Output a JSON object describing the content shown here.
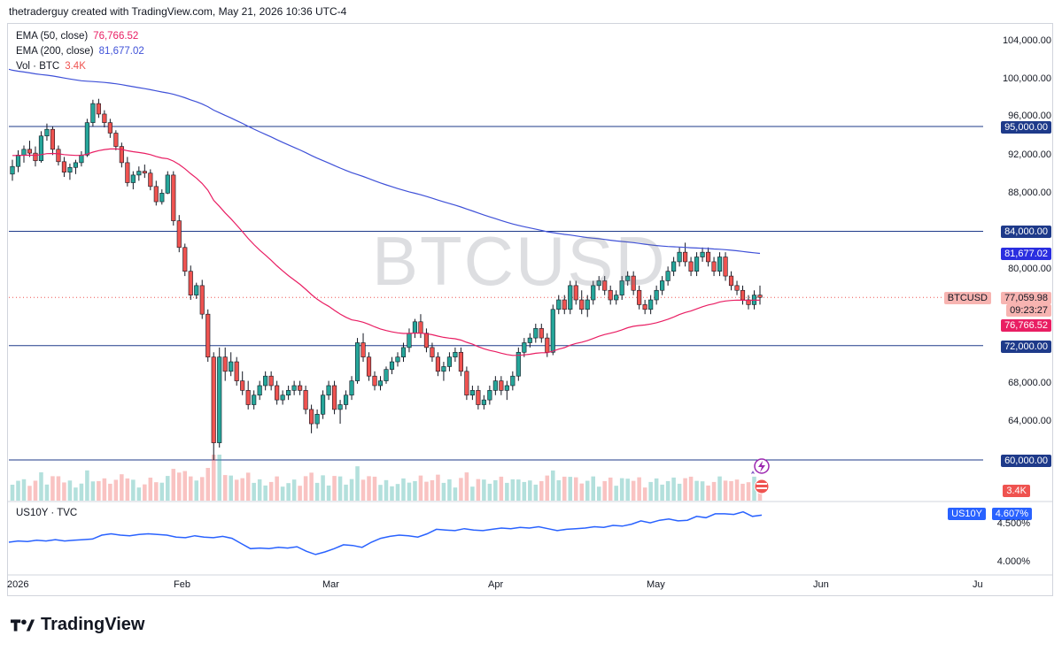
{
  "header": {
    "text": "thetraderguy created with TradingView.com, May 21, 2026 10:36 UTC-4"
  },
  "watermark": "BTCUSD",
  "legend": {
    "ema50": {
      "label": "EMA (50, close)",
      "value": "76,766.52",
      "color": "#e91e63"
    },
    "ema200": {
      "label": "EMA (200, close)",
      "value": "81,677.02",
      "color": "#3f51d8"
    },
    "vol": {
      "label": "Vol · BTC",
      "value": "3.4K",
      "color": "#ef5350"
    }
  },
  "price_labels": [
    "104,000.00",
    "100,000.00",
    "96,000.00",
    "92,000.00",
    "88,000.00",
    "80,000.00",
    "68,000.00",
    "64,000.00"
  ],
  "level_tags": [
    {
      "label": "95,000.00",
      "price": 95000
    },
    {
      "label": "84,000.00",
      "price": 84000
    },
    {
      "label": "72,000.00",
      "price": 72000
    },
    {
      "label": "60,000.00",
      "price": 60000
    }
  ],
  "ema200_tag": "81,677.02",
  "ema50_tag": "76,766.52",
  "current": {
    "symbol": "BTCUSD",
    "price": "77,059.98",
    "countdown": "09:23:27"
  },
  "vol_tag": "3.4K",
  "sub": {
    "legend": "US10Y · TVC",
    "tag_symbol": "US10Y",
    "tag_value": "4.607%",
    "labels": [
      "4.500%",
      "4.000%"
    ]
  },
  "x_labels": [
    "2026",
    "Feb",
    "Mar",
    "Apr",
    "May",
    "Jun",
    "Ju"
  ],
  "footer": {
    "brand": "TradingView"
  },
  "colors": {
    "up": "#26a69a",
    "down": "#ef5350",
    "level": "#1e3a8a",
    "ema50": "#e91e63",
    "ema200": "#3f51d8",
    "us10y": "#2962ff"
  },
  "chart_data": {
    "type": "line",
    "title": "",
    "xlabel": "",
    "ylabel": "",
    "price_axis": {
      "ylim": [
        58000,
        106000
      ]
    },
    "horizontal_levels": [
      95000,
      84000,
      72000,
      60000
    ],
    "candles": [
      [
        90000,
        91500,
        89300,
        90800
      ],
      [
        90800,
        92500,
        90200,
        92000
      ],
      [
        92000,
        93000,
        91200,
        92600
      ],
      [
        92600,
        93500,
        91800,
        92200
      ],
      [
        92200,
        92900,
        90800,
        91400
      ],
      [
        91400,
        94500,
        91200,
        94000
      ],
      [
        94000,
        95300,
        93500,
        94700
      ],
      [
        94700,
        95000,
        92000,
        92600
      ],
      [
        92600,
        93000,
        90900,
        91300
      ],
      [
        91300,
        91800,
        89700,
        90200
      ],
      [
        90200,
        91100,
        89400,
        90700
      ],
      [
        90700,
        91500,
        90000,
        91200
      ],
      [
        91200,
        92400,
        90800,
        92000
      ],
      [
        92000,
        95800,
        91800,
        95400
      ],
      [
        95400,
        97800,
        95000,
        97400
      ],
      [
        97400,
        97900,
        95900,
        96300
      ],
      [
        96300,
        96700,
        94900,
        95400
      ],
      [
        95400,
        95800,
        93800,
        94300
      ],
      [
        94300,
        94600,
        92500,
        92900
      ],
      [
        92900,
        93300,
        90700,
        91200
      ],
      [
        91200,
        91800,
        88700,
        89100
      ],
      [
        89100,
        90300,
        88400,
        89900
      ],
      [
        89900,
        90800,
        89300,
        90300
      ],
      [
        90300,
        91000,
        89600,
        90100
      ],
      [
        90100,
        90500,
        88300,
        88700
      ],
      [
        88700,
        89300,
        86700,
        87100
      ],
      [
        87100,
        88400,
        86800,
        88000
      ],
      [
        88000,
        90300,
        87900,
        89900
      ],
      [
        89900,
        90300,
        84600,
        85100
      ],
      [
        85100,
        85700,
        81800,
        82300
      ],
      [
        82300,
        82700,
        79300,
        79800
      ],
      [
        79800,
        80400,
        76800,
        77300
      ],
      [
        77300,
        78600,
        76900,
        78300
      ],
      [
        78300,
        78900,
        74800,
        75300
      ],
      [
        75300,
        75800,
        70300,
        70800
      ],
      [
        70800,
        71300,
        60000,
        61800
      ],
      [
        61800,
        71800,
        61300,
        70800
      ],
      [
        70800,
        71800,
        68300,
        69300
      ],
      [
        69300,
        71300,
        68800,
        70300
      ],
      [
        70300,
        70800,
        67800,
        68300
      ],
      [
        68300,
        69300,
        66800,
        67300
      ],
      [
        67300,
        68300,
        65300,
        65800
      ],
      [
        65800,
        67300,
        65300,
        66800
      ],
      [
        66800,
        68300,
        66300,
        67800
      ],
      [
        67800,
        69300,
        67300,
        68800
      ],
      [
        68800,
        69300,
        67300,
        67800
      ],
      [
        67800,
        68300,
        65800,
        66300
      ],
      [
        66300,
        67300,
        65800,
        66800
      ],
      [
        66800,
        67800,
        66300,
        67300
      ],
      [
        67300,
        68300,
        66800,
        67800
      ],
      [
        67800,
        68300,
        66800,
        67300
      ],
      [
        67300,
        67800,
        64800,
        65300
      ],
      [
        65300,
        65800,
        62800,
        63800
      ],
      [
        63800,
        65300,
        63300,
        64800
      ],
      [
        64800,
        67300,
        64300,
        66800
      ],
      [
        66800,
        68300,
        66300,
        67800
      ],
      [
        67800,
        68300,
        64800,
        65300
      ],
      [
        65300,
        66300,
        63800,
        65800
      ],
      [
        65800,
        67300,
        65300,
        66800
      ],
      [
        66800,
        68800,
        66300,
        68300
      ],
      [
        68300,
        72800,
        68000,
        72300
      ],
      [
        72300,
        73300,
        70300,
        70800
      ],
      [
        70800,
        71300,
        68300,
        68800
      ],
      [
        68800,
        69300,
        67300,
        67800
      ],
      [
        67800,
        68800,
        67300,
        68300
      ],
      [
        68300,
        69800,
        68000,
        69500
      ],
      [
        69500,
        70800,
        69000,
        70300
      ],
      [
        70300,
        71300,
        69800,
        70800
      ],
      [
        70800,
        72300,
        70300,
        71800
      ],
      [
        71800,
        73800,
        71300,
        73300
      ],
      [
        73300,
        74800,
        72800,
        74500
      ],
      [
        74500,
        75300,
        72800,
        73300
      ],
      [
        73300,
        73800,
        71300,
        71800
      ],
      [
        71800,
        72300,
        70300,
        70800
      ],
      [
        70800,
        71300,
        68800,
        69300
      ],
      [
        69300,
        70300,
        68300,
        69800
      ],
      [
        69800,
        71300,
        69300,
        70800
      ],
      [
        70800,
        71800,
        70300,
        71300
      ],
      [
        71300,
        71800,
        68800,
        69300
      ],
      [
        69300,
        69800,
        66300,
        66800
      ],
      [
        66800,
        67800,
        66300,
        67300
      ],
      [
        67300,
        67800,
        65300,
        65800
      ],
      [
        65800,
        66800,
        65300,
        66300
      ],
      [
        66300,
        67800,
        65800,
        67300
      ],
      [
        67300,
        68800,
        66800,
        68300
      ],
      [
        68300,
        68800,
        66800,
        67300
      ],
      [
        67300,
        68300,
        66300,
        67800
      ],
      [
        67800,
        69300,
        67300,
        68800
      ],
      [
        68800,
        71800,
        68300,
        71300
      ],
      [
        71300,
        72800,
        70800,
        72300
      ],
      [
        72300,
        73300,
        71800,
        72800
      ],
      [
        72800,
        74300,
        72300,
        73800
      ],
      [
        73800,
        74300,
        72300,
        72800
      ],
      [
        72800,
        73300,
        70800,
        71300
      ],
      [
        71300,
        76300,
        71000,
        75800
      ],
      [
        75800,
        77300,
        75300,
        76800
      ],
      [
        76800,
        77300,
        75300,
        75800
      ],
      [
        75800,
        78800,
        75300,
        78300
      ],
      [
        78300,
        78800,
        76300,
        76800
      ],
      [
        76800,
        77800,
        75300,
        75800
      ],
      [
        75800,
        77300,
        75000,
        76800
      ],
      [
        76800,
        78800,
        76300,
        78300
      ],
      [
        78300,
        79300,
        77800,
        78800
      ],
      [
        78800,
        79300,
        77300,
        77800
      ],
      [
        77800,
        78300,
        76300,
        76800
      ],
      [
        76800,
        77800,
        76300,
        77300
      ],
      [
        77300,
        79300,
        76800,
        78800
      ],
      [
        78800,
        79800,
        78300,
        79300
      ],
      [
        79300,
        79800,
        77300,
        77800
      ],
      [
        77800,
        78300,
        75800,
        76300
      ],
      [
        76300,
        76800,
        75300,
        75800
      ],
      [
        75800,
        77300,
        75300,
        76800
      ],
      [
        76800,
        78300,
        76300,
        77800
      ],
      [
        77800,
        79300,
        77300,
        78800
      ],
      [
        78800,
        80300,
        78300,
        79800
      ],
      [
        79800,
        81300,
        79300,
        80800
      ],
      [
        80800,
        82300,
        80300,
        81800
      ],
      [
        81800,
        82800,
        80300,
        80800
      ],
      [
        80800,
        81300,
        79300,
        79800
      ],
      [
        79800,
        81800,
        79300,
        81300
      ],
      [
        81300,
        82300,
        80800,
        81800
      ],
      [
        81800,
        82300,
        80300,
        80800
      ],
      [
        80800,
        81300,
        79300,
        79800
      ],
      [
        79800,
        81800,
        79300,
        81300
      ],
      [
        81300,
        81800,
        78800,
        79300
      ],
      [
        79300,
        79800,
        77800,
        78300
      ],
      [
        78300,
        78800,
        77300,
        77800
      ],
      [
        77800,
        78300,
        76300,
        76800
      ],
      [
        76800,
        77300,
        75800,
        76300
      ],
      [
        76300,
        77800,
        75800,
        77300
      ],
      [
        77300,
        78300,
        76300,
        77060
      ]
    ],
    "series": [
      {
        "name": "EMA (50, close)",
        "start": 92000,
        "end": 76766.52
      },
      {
        "name": "EMA (200, close)",
        "start": 101000,
        "end": 81677.02
      }
    ],
    "us10y": {
      "ylim": [
        3.85,
        4.7
      ],
      "last": 4.607
    }
  }
}
